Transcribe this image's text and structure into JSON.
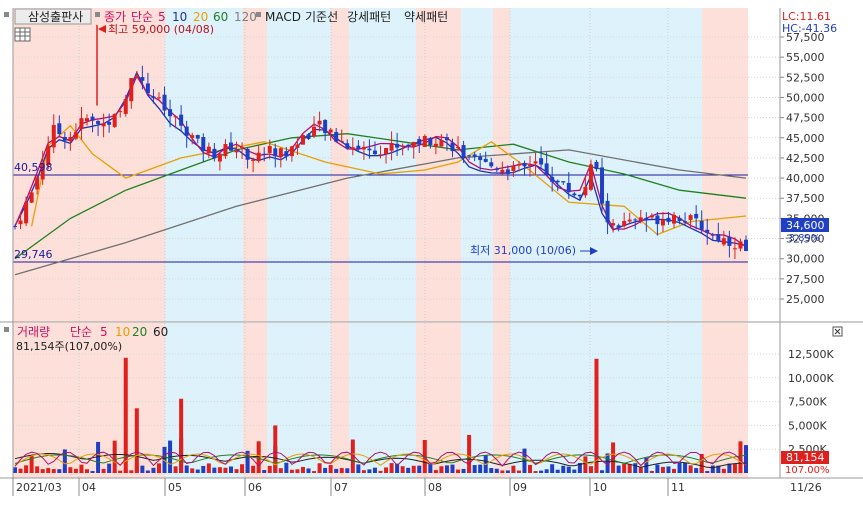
{
  "price_legend": {
    "title": "삼성출판사",
    "close_label": "종가",
    "simple_label": "단순",
    "ma_periods": [
      "5",
      "10",
      "20",
      "60",
      "120"
    ],
    "macd_label": "MACD",
    "baseline_label": "기준선",
    "strong_label": "강세패턴",
    "weak_label": "약세패턴"
  },
  "volume_legend": {
    "title": "거래량",
    "simple_label": "단순",
    "ma_periods": [
      "5",
      "10",
      "20",
      "60"
    ],
    "current": "81,154주(107,00%)"
  },
  "top_right": {
    "lc": "LC:11.61",
    "hc": "HC:-41.36"
  },
  "annotations": {
    "high": "최고 59,000 (04/08)",
    "low": "최저 31,000 (10/06)",
    "line_upper": "40,598",
    "line_lower": "29,746"
  },
  "price_axis": {
    "ticks": [
      "57,500",
      "55,000",
      "52,500",
      "50,000",
      "47,500",
      "45,000",
      "42,500",
      "40,000",
      "37,500",
      "35,000",
      "32,500",
      "30,000",
      "27,500",
      "25,000"
    ],
    "current_price": "34,600",
    "current_change": "-3.89%"
  },
  "volume_axis": {
    "ticks": [
      "12,500K",
      "10,000K",
      "7,500K",
      "5,000K",
      "2,500K"
    ],
    "current_volume": "81,154",
    "current_pct": "107.00%"
  },
  "date_axis": {
    "labels": [
      "2021/03",
      "04",
      "05",
      "06",
      "07",
      "08",
      "09",
      "10",
      "11"
    ],
    "right_label": "11/26"
  },
  "colors": {
    "up": "#e0201c",
    "down": "#1f3fc4",
    "ma5": "#b01070",
    "ma10": "#2030b0",
    "ma20": "#e8a000",
    "ma60": "#208020",
    "ma120": "#707070",
    "band_pink": "#fde0da",
    "band_blue": "#def2fb"
  },
  "chart_data": {
    "type": "candlestick",
    "hlines": [
      40598,
      29746
    ],
    "high": {
      "value": 59000,
      "date": "04/08"
    },
    "low": {
      "value": 31000,
      "date": "10/06"
    },
    "ma_approx": {
      "ma20": [
        [
          3,
          34000
        ],
        [
          6,
          44000
        ],
        [
          10,
          46500
        ],
        [
          14,
          43000
        ],
        [
          20,
          40000
        ],
        [
          30,
          42500
        ],
        [
          45,
          44500
        ],
        [
          56,
          42000
        ],
        [
          66,
          40500
        ],
        [
          74,
          41000
        ],
        [
          80,
          42000
        ],
        [
          86,
          44500
        ],
        [
          92,
          41500
        ],
        [
          100,
          37000
        ],
        [
          110,
          36500
        ],
        [
          116,
          33000
        ],
        [
          122,
          34600
        ],
        [
          132,
          35300
        ]
      ],
      "ma60": [
        [
          0,
          30000
        ],
        [
          10,
          35000
        ],
        [
          20,
          38500
        ],
        [
          30,
          41000
        ],
        [
          40,
          43500
        ],
        [
          50,
          45000
        ],
        [
          60,
          45500
        ],
        [
          70,
          44500
        ],
        [
          80,
          43500
        ],
        [
          90,
          44200
        ],
        [
          100,
          42000
        ],
        [
          110,
          40500
        ],
        [
          120,
          38500
        ],
        [
          132,
          37500
        ]
      ],
      "ma120": [
        [
          0,
          28000
        ],
        [
          20,
          32000
        ],
        [
          40,
          36500
        ],
        [
          60,
          40000
        ],
        [
          80,
          42500
        ],
        [
          100,
          43500
        ],
        [
          120,
          41000
        ],
        [
          132,
          40000
        ]
      ]
    }
  }
}
